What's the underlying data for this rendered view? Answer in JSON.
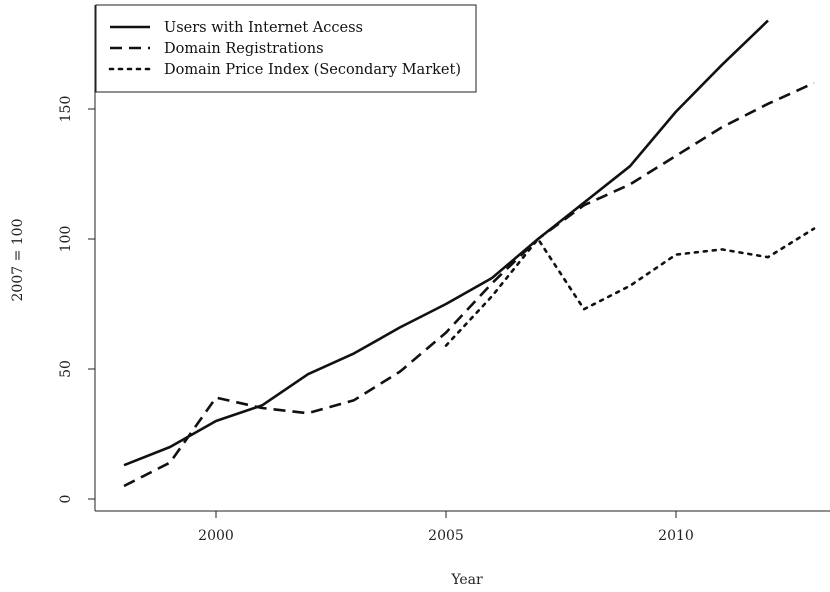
{
  "chart_data": {
    "type": "line",
    "xlabel": "Year",
    "ylabel": "2007 = 100",
    "xlim": [
      1997.5,
      2013.2
    ],
    "ylim": [
      0,
      185
    ],
    "x_ticks": [
      2000,
      2005,
      2010
    ],
    "y_ticks": [
      0,
      50,
      100,
      150
    ],
    "legend_position": "top-left",
    "series": [
      {
        "name": "Users with Internet Access",
        "dash": "solid",
        "x": [
          1998,
          1999,
          2000,
          2001,
          2002,
          2003,
          2004,
          2005,
          2006,
          2007,
          2008,
          2009,
          2010,
          2011,
          2012
        ],
        "values": [
          13,
          20,
          30,
          36,
          48,
          56,
          66,
          75,
          85,
          100,
          114,
          128,
          149,
          167,
          184
        ]
      },
      {
        "name": "Domain Registrations",
        "dash": "dashed",
        "x": [
          1998,
          1999,
          2000,
          2001,
          2002,
          2003,
          2004,
          2005,
          2006,
          2007,
          2008,
          2009,
          2010,
          2011,
          2012,
          2013
        ],
        "values": [
          5,
          14,
          39,
          35,
          33,
          38,
          49,
          64,
          83,
          100,
          113,
          121,
          132,
          143,
          152,
          160
        ]
      },
      {
        "name": "Domain Price Index (Secondary Market)",
        "dash": "dotted",
        "x": [
          2005,
          2006,
          2007,
          2008,
          2009,
          2010,
          2011,
          2012,
          2013
        ],
        "values": [
          59,
          78,
          100,
          73,
          82,
          94,
          96,
          93,
          104
        ]
      }
    ]
  }
}
